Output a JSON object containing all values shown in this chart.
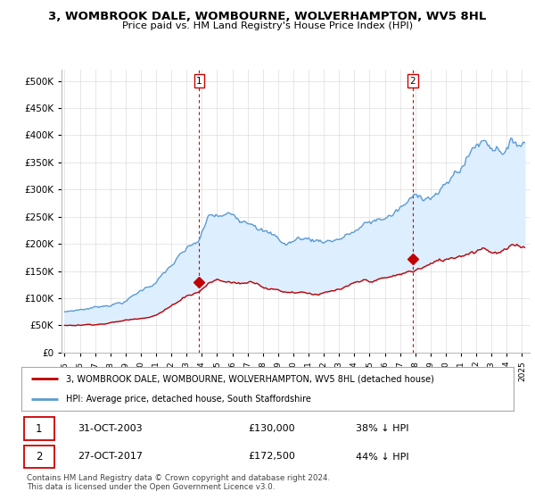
{
  "title": "3, WOMBROOK DALE, WOMBOURNE, WOLVERHAMPTON, WV5 8HL",
  "subtitle": "Price paid vs. HM Land Registry's House Price Index (HPI)",
  "ylabel_ticks": [
    0,
    50000,
    100000,
    150000,
    200000,
    250000,
    300000,
    350000,
    400000,
    450000,
    500000
  ],
  "ylim": [
    0,
    520000
  ],
  "xlim_start": 1994.8,
  "xlim_end": 2025.5,
  "hpi_color": "#5b9bd5",
  "price_color": "#c00000",
  "fill_color": "#ddeeff",
  "vline_color": "#cc0000",
  "transaction1_x": 2003.83,
  "transaction1_y": 130000,
  "transaction2_x": 2017.83,
  "transaction2_y": 172500,
  "legend_line1": "3, WOMBROOK DALE, WOMBOURNE, WOLVERHAMPTON, WV5 8HL (detached house)",
  "legend_line2": "HPI: Average price, detached house, South Staffordshire",
  "table_row1": [
    "1",
    "31-OCT-2003",
    "£130,000",
    "38% ↓ HPI"
  ],
  "table_row2": [
    "2",
    "27-OCT-2017",
    "£172,500",
    "44% ↓ HPI"
  ],
  "footer": "Contains HM Land Registry data © Crown copyright and database right 2024.\nThis data is licensed under the Open Government Licence v3.0.",
  "background_color": "#ffffff",
  "grid_color": "#dddddd"
}
